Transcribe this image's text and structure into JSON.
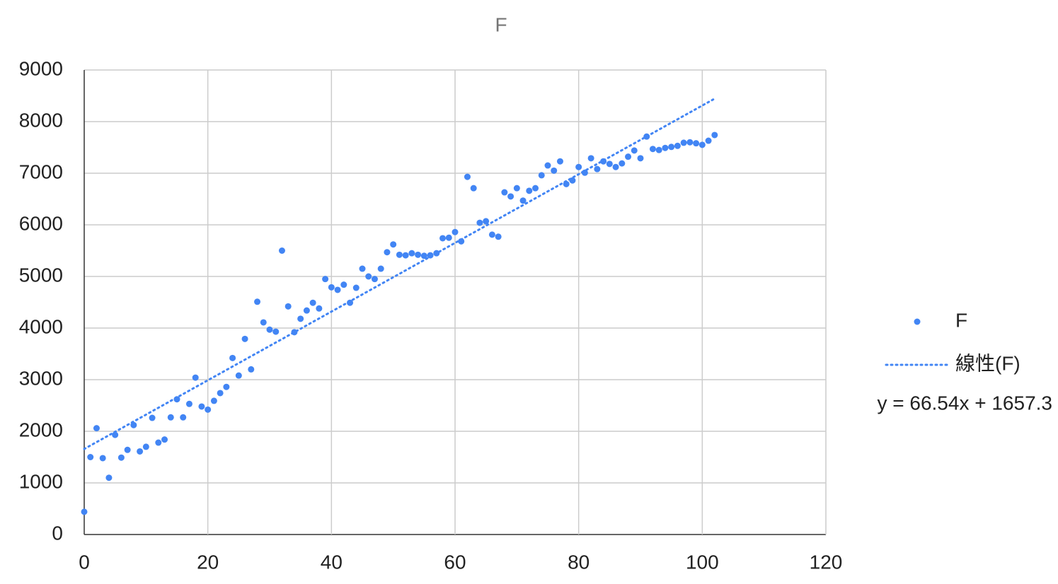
{
  "chart_data": {
    "type": "scatter",
    "title": "F",
    "x": [
      0,
      1,
      2,
      3,
      4,
      5,
      6,
      7,
      8,
      9,
      10,
      11,
      12,
      13,
      14,
      15,
      16,
      17,
      18,
      19,
      20,
      21,
      22,
      23,
      24,
      25,
      26,
      27,
      28,
      29,
      30,
      31,
      32,
      33,
      34,
      35,
      36,
      37,
      38,
      39,
      40,
      41,
      42,
      43,
      44,
      45,
      46,
      47,
      48,
      49,
      50,
      51,
      52,
      53,
      54,
      55,
      56,
      57,
      58,
      59,
      60,
      61,
      62,
      63,
      64,
      65,
      66,
      67,
      68,
      69,
      70,
      71,
      72,
      73,
      74,
      75,
      76,
      77,
      78,
      79,
      80,
      81,
      82,
      83,
      84,
      85,
      86,
      87,
      88,
      89,
      90,
      91,
      92,
      93,
      94,
      95,
      96,
      97,
      98,
      99,
      100,
      101,
      102
    ],
    "series": [
      {
        "name": "F",
        "color": "#4285f4",
        "values": [
          440,
          1500,
          2060,
          1480,
          1100,
          1930,
          1490,
          1640,
          2120,
          1610,
          1700,
          2260,
          1780,
          1840,
          2270,
          2620,
          2270,
          2530,
          3040,
          2480,
          2420,
          2590,
          2740,
          2860,
          3420,
          3080,
          3790,
          3200,
          4510,
          4110,
          3970,
          3930,
          5500,
          4420,
          3920,
          4180,
          4340,
          4490,
          4380,
          4950,
          4790,
          4740,
          4840,
          4490,
          4780,
          5150,
          5000,
          4950,
          5150,
          5470,
          5620,
          5420,
          5410,
          5450,
          5420,
          5400,
          5410,
          5450,
          5740,
          5750,
          5860,
          5680,
          6930,
          6710,
          6040,
          6070,
          5810,
          5770,
          6630,
          6550,
          6710,
          6470,
          6660,
          6710,
          6960,
          7150,
          7050,
          7230,
          6790,
          6860,
          7120,
          7010,
          7290,
          7080,
          7230,
          7180,
          7120,
          7190,
          7320,
          7440,
          7290,
          7710,
          7470,
          7450,
          7490,
          7510,
          7530,
          7590,
          7600,
          7580,
          7550,
          7630,
          7740
        ]
      }
    ],
    "trendline": {
      "name": "線性(F)",
      "label": "y = 66.54x + 1657.3",
      "slope": 66.54,
      "intercept": 1657.3,
      "color": "#4285f4"
    },
    "xlim": [
      0,
      120
    ],
    "xticks": [
      0,
      20,
      40,
      60,
      80,
      100,
      120
    ],
    "ylim": [
      0,
      9000
    ],
    "yticks": [
      0,
      1000,
      2000,
      3000,
      4000,
      5000,
      6000,
      7000,
      8000,
      9000
    ],
    "grid": true,
    "legend": "right"
  }
}
